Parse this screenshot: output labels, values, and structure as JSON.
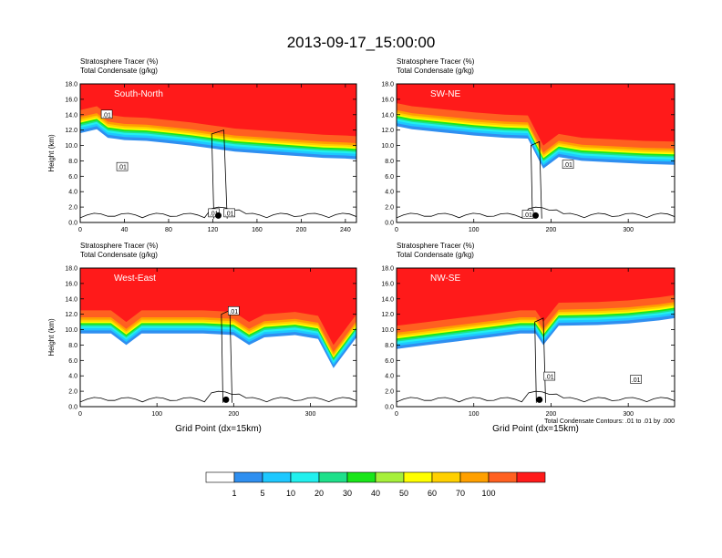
{
  "title": "2013-09-17_15:00:00",
  "chart_data": {
    "type": "cross-section",
    "figure_title": "2013-09-17_15:00:00",
    "panels": [
      {
        "label": "South-North",
        "header_lines": [
          "Stratosphere Tracer   (%)",
          "Total Condensate   (g/kg)"
        ],
        "xlabel": "",
        "ylabel": "Height (km)",
        "xlim": [
          0,
          250
        ],
        "ylim": [
          0,
          18
        ],
        "xticks": [
          0,
          40,
          80,
          120,
          160,
          200,
          240
        ],
        "yticks": [
          "0.0",
          "2.0",
          "4.0",
          "6.0",
          "8.0",
          "10.0",
          "12.0",
          "14.0",
          "16.0",
          "18.0"
        ],
        "tropopause": [
          [
            0,
            14.6
          ],
          [
            15,
            15.1
          ],
          [
            25,
            14.0
          ],
          [
            40,
            13.7
          ],
          [
            60,
            13.6
          ],
          [
            80,
            13.3
          ],
          [
            100,
            13.0
          ],
          [
            120,
            12.6
          ],
          [
            130,
            12.4
          ],
          [
            140,
            12.2
          ],
          [
            160,
            12.0
          ],
          [
            180,
            11.8
          ],
          [
            200,
            11.6
          ],
          [
            220,
            11.4
          ],
          [
            240,
            11.3
          ],
          [
            250,
            11.2
          ]
        ],
        "contour_labels": [
          {
            "text": ".01",
            "x": 24,
            "y": 14.0
          },
          {
            "text": ".01",
            "x": 38,
            "y": 7.2
          },
          {
            "text": ".01",
            "x": 121,
            "y": 1.2
          },
          {
            "text": ".01",
            "x": 135,
            "y": 1.2
          }
        ]
      },
      {
        "label": "SW-NE",
        "header_lines": [
          "Stratosphere Tracer   (%)",
          "Total Condensate   (g/kg)"
        ],
        "xlabel": "",
        "ylabel": "",
        "xlim": [
          0,
          360
        ],
        "ylim": [
          0,
          18
        ],
        "xticks": [
          0,
          100,
          200,
          300
        ],
        "yticks": [
          "0.0",
          "2.0",
          "4.0",
          "6.0",
          "8.0",
          "10.0",
          "12.0",
          "14.0",
          "16.0",
          "18.0"
        ],
        "tropopause": [
          [
            0,
            15.5
          ],
          [
            20,
            15.1
          ],
          [
            60,
            14.7
          ],
          [
            100,
            14.3
          ],
          [
            140,
            14.0
          ],
          [
            170,
            13.9
          ],
          [
            190,
            10.0
          ],
          [
            210,
            11.5
          ],
          [
            240,
            11.0
          ],
          [
            280,
            10.8
          ],
          [
            320,
            10.6
          ],
          [
            360,
            10.5
          ]
        ],
        "contour_labels": [
          {
            "text": ".01",
            "x": 222,
            "y": 7.5
          },
          {
            "text": ".01",
            "x": 170,
            "y": 1.0
          }
        ]
      },
      {
        "label": "West-East",
        "header_lines": [
          "Stratosphere Tracer   (%)",
          "Total Condensate   (g/kg)"
        ],
        "xlabel": "Grid Point (dx=15km)",
        "ylabel": "Height (km)",
        "xlim": [
          0,
          360
        ],
        "ylim": [
          0,
          18
        ],
        "xticks": [
          0,
          100,
          200,
          300
        ],
        "yticks": [
          "0.0",
          "2.0",
          "4.0",
          "6.0",
          "8.0",
          "10.0",
          "12.0",
          "14.0",
          "16.0",
          "18.0"
        ],
        "tropopause": [
          [
            0,
            12.5
          ],
          [
            40,
            12.5
          ],
          [
            60,
            11.0
          ],
          [
            80,
            12.5
          ],
          [
            120,
            12.5
          ],
          [
            160,
            12.5
          ],
          [
            200,
            12.3
          ],
          [
            220,
            11.0
          ],
          [
            240,
            12.0
          ],
          [
            280,
            12.3
          ],
          [
            310,
            11.8
          ],
          [
            330,
            8.0
          ],
          [
            345,
            10.0
          ],
          [
            360,
            12.0
          ]
        ],
        "contour_labels": [
          {
            "text": ".01",
            "x": 200,
            "y": 12.4
          }
        ]
      },
      {
        "label": "NW-SE",
        "header_lines": [
          "Stratosphere Tracer   (%)",
          "Total Condensate   (g/kg)"
        ],
        "xlabel": "Grid Point (dx=15km)",
        "ylabel": "",
        "xlim": [
          0,
          360
        ],
        "ylim": [
          0,
          18
        ],
        "xticks": [
          0,
          100,
          200,
          300
        ],
        "yticks": [
          "0.0",
          "2.0",
          "4.0",
          "6.0",
          "8.0",
          "10.0",
          "12.0",
          "14.0",
          "16.0",
          "18.0"
        ],
        "tropopause": [
          [
            0,
            10.5
          ],
          [
            40,
            11.0
          ],
          [
            80,
            11.5
          ],
          [
            120,
            12.0
          ],
          [
            160,
            12.5
          ],
          [
            180,
            12.5
          ],
          [
            190,
            11.0
          ],
          [
            210,
            13.5
          ],
          [
            260,
            13.6
          ],
          [
            300,
            13.8
          ],
          [
            340,
            14.2
          ],
          [
            360,
            14.5
          ]
        ],
        "contour_labels": [
          {
            "text": ".01",
            "x": 198,
            "y": 3.9
          },
          {
            "text": ".01",
            "x": 310,
            "y": 3.5
          }
        ],
        "footnote": "Total Condensate Contours: .01 to .01 by .000"
      }
    ],
    "colorbar": {
      "labels": [
        "1",
        "5",
        "10",
        "20",
        "30",
        "40",
        "50",
        "60",
        "70",
        "100"
      ],
      "colors": [
        "#ffffff",
        "#2f8ff0",
        "#1ec8ff",
        "#21f0ee",
        "#1ee08a",
        "#19e619",
        "#a6f03a",
        "#ffff00",
        "#ffd000",
        "#ffa000",
        "#ff6020",
        "#ff1a1a"
      ]
    }
  }
}
